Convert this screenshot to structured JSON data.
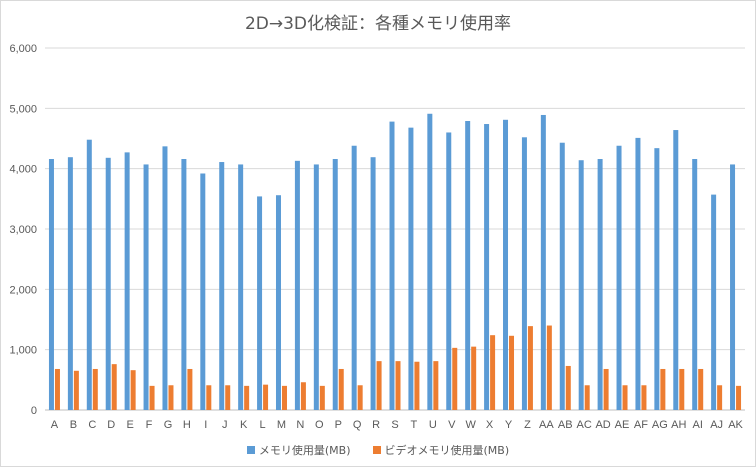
{
  "chart_data": {
    "type": "bar",
    "title": "2D→3D化検証：各種メモリ使用率",
    "categories": [
      "A",
      "B",
      "C",
      "D",
      "E",
      "F",
      "G",
      "H",
      "I",
      "J",
      "K",
      "L",
      "M",
      "N",
      "O",
      "P",
      "Q",
      "R",
      "S",
      "T",
      "U",
      "V",
      "W",
      "X",
      "Y",
      "Z",
      "AA",
      "AB",
      "AC",
      "AD",
      "AE",
      "AF",
      "AG",
      "AH",
      "AI",
      "AJ",
      "AK"
    ],
    "series": [
      {
        "name": "メモリ使用量(MB)",
        "color": "#5b9bd5",
        "values": [
          4160,
          4190,
          4480,
          4180,
          4270,
          4070,
          4370,
          4160,
          3920,
          4110,
          4070,
          3540,
          3560,
          4130,
          4070,
          4160,
          4380,
          4190,
          4780,
          4680,
          4910,
          4600,
          4790,
          4740,
          4810,
          4520,
          4890,
          4430,
          4140,
          4160,
          4380,
          4510,
          4340,
          4640,
          4160,
          3570,
          4070
        ]
      },
      {
        "name": "ビデオメモリ使用量(MB)",
        "color": "#ed7d31",
        "values": [
          680,
          650,
          680,
          760,
          660,
          400,
          410,
          680,
          410,
          410,
          400,
          420,
          400,
          460,
          400,
          680,
          410,
          810,
          810,
          800,
          810,
          1030,
          1050,
          1240,
          1230,
          1390,
          1400,
          730,
          410,
          680,
          410,
          410,
          680,
          680,
          680,
          410,
          400
        ]
      }
    ],
    "xlabel": "",
    "ylabel": "",
    "ylim": [
      0,
      6000
    ],
    "yticks": [
      "0",
      "1,000",
      "2,000",
      "3,000",
      "4,000",
      "5,000",
      "6,000"
    ],
    "grid": true,
    "legend_position": "bottom"
  }
}
